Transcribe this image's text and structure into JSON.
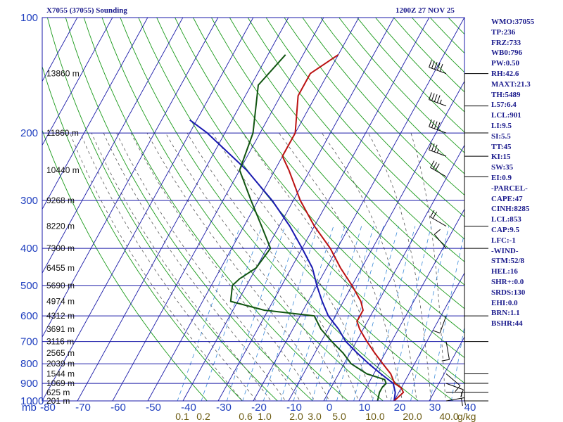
{
  "header": {
    "title": "X7055 (37055) Sounding",
    "datetime": "1200Z 27 NOV 25"
  },
  "indices": [
    "WMO:37055",
    "TP:236",
    "FRZ:733",
    "WB0:796",
    "PW:0.50",
    "RH:42.6",
    "MAXT:21.3",
    "TH:5489",
    "L57:6.4",
    "LCL:901",
    "LI:9.5",
    "SI:5.5",
    "TT:45",
    "KI:15",
    "SW:35",
    "EI:0.9",
    "-PARCEL-",
    "CAPE:47",
    "CINH:8285",
    "LCL:853",
    "CAP:9.5",
    "LFC:-1",
    "-WIND-",
    "STM:52/8",
    "HEL:16",
    "SHR+:0.0",
    "SRDS:130",
    "EHI:0.0",
    "BRN:1.1",
    "BSHR:44"
  ],
  "colors": {
    "isobar": "#1a1aa8",
    "isotherm": "#1a1aa8",
    "dry_adiabat": "#1a9a1a",
    "moist_adiabat": "#555555",
    "mixing_ratio": "#3a8ad8",
    "temperature": "#bb1111",
    "dewpoint": "#115511",
    "parcel": "#1a1ab0",
    "wind_barb": "#000000"
  },
  "chart_data": {
    "type": "skew-t",
    "pressure_unit": "mb",
    "pressure_levels": [
      100,
      200,
      300,
      400,
      500,
      600,
      700,
      800,
      900,
      1000
    ],
    "temperature_ticks": [
      -80,
      -70,
      -60,
      -50,
      -40,
      -30,
      -20,
      -10,
      0,
      10,
      20,
      30,
      40
    ],
    "mixing_ratio_labels": [
      "0.1",
      "0.2",
      "0.6",
      "1.0",
      "2.0",
      "3.0",
      "5.0",
      "10.0",
      "20.0",
      "40.0"
    ],
    "mixing_ratio_unit": "g/kg",
    "heights": [
      {
        "p": 140,
        "label": "13860 m"
      },
      {
        "p": 200,
        "label": "11860 m"
      },
      {
        "p": 250,
        "label": "10440 m"
      },
      {
        "p": 300,
        "label": "9268 m"
      },
      {
        "p": 350,
        "label": "8220 m"
      },
      {
        "p": 400,
        "label": "7300 m"
      },
      {
        "p": 450,
        "label": "6455 m"
      },
      {
        "p": 500,
        "label": "5690 m"
      },
      {
        "p": 550,
        "label": "4974 m"
      },
      {
        "p": 600,
        "label": "4312 m"
      },
      {
        "p": 650,
        "label": "3691 m"
      },
      {
        "p": 700,
        "label": "3116 m"
      },
      {
        "p": 750,
        "label": "2565 m"
      },
      {
        "p": 800,
        "label": "2039 m"
      },
      {
        "p": 850,
        "label": "1544 m"
      },
      {
        "p": 900,
        "label": "1069 m"
      },
      {
        "p": 950,
        "label": "625 m"
      },
      {
        "p": 1000,
        "label": "201 m"
      }
    ],
    "temperature_profile": [
      {
        "p": 1000,
        "t": 20.0
      },
      {
        "p": 950,
        "t": 21.3
      },
      {
        "p": 925,
        "t": 20.0
      },
      {
        "p": 900,
        "t": 17.4
      },
      {
        "p": 850,
        "t": 14.8
      },
      {
        "p": 800,
        "t": 11.0
      },
      {
        "p": 750,
        "t": 7.0
      },
      {
        "p": 700,
        "t": 3.0
      },
      {
        "p": 650,
        "t": -1.0
      },
      {
        "p": 620,
        "t": -3.0
      },
      {
        "p": 600,
        "t": -3.0
      },
      {
        "p": 580,
        "t": -3.0
      },
      {
        "p": 550,
        "t": -5.0
      },
      {
        "p": 500,
        "t": -10.0
      },
      {
        "p": 450,
        "t": -16.0
      },
      {
        "p": 400,
        "t": -22.0
      },
      {
        "p": 350,
        "t": -30.0
      },
      {
        "p": 300,
        "t": -38.0
      },
      {
        "p": 250,
        "t": -46.0
      },
      {
        "p": 230,
        "t": -50.0
      },
      {
        "p": 200,
        "t": -50.0
      },
      {
        "p": 160,
        "t": -55.0
      },
      {
        "p": 140,
        "t": -55.0
      },
      {
        "p": 125,
        "t": -50.0
      }
    ],
    "dewpoint_profile": [
      {
        "p": 1000,
        "td": 15.3
      },
      {
        "p": 950,
        "td": 14.5
      },
      {
        "p": 920,
        "td": 14.5
      },
      {
        "p": 900,
        "td": 15.0
      },
      {
        "p": 880,
        "td": 14.0
      },
      {
        "p": 850,
        "td": 8.0
      },
      {
        "p": 800,
        "td": 2.0
      },
      {
        "p": 750,
        "td": -2.0
      },
      {
        "p": 700,
        "td": -7.0
      },
      {
        "p": 650,
        "td": -12.0
      },
      {
        "p": 600,
        "td": -16.0
      },
      {
        "p": 580,
        "td": -31.0
      },
      {
        "p": 550,
        "td": -42.0
      },
      {
        "p": 500,
        "td": -44.0
      },
      {
        "p": 480,
        "td": -43.0
      },
      {
        "p": 450,
        "td": -40.0
      },
      {
        "p": 400,
        "td": -39.0
      },
      {
        "p": 350,
        "td": -45.0
      },
      {
        "p": 300,
        "td": -52.0
      },
      {
        "p": 250,
        "td": -60.0
      },
      {
        "p": 200,
        "td": -62.0
      },
      {
        "p": 150,
        "td": -68.0
      },
      {
        "p": 125,
        "td": -65.0
      }
    ],
    "parcel_profile": [
      {
        "p": 1000,
        "t": 20.0
      },
      {
        "p": 950,
        "t": 19.0
      },
      {
        "p": 900,
        "t": 17.0
      },
      {
        "p": 850,
        "t": 12.0
      },
      {
        "p": 800,
        "t": 7.0
      },
      {
        "p": 750,
        "t": 2.0
      },
      {
        "p": 700,
        "t": -3.0
      },
      {
        "p": 650,
        "t": -7.0
      },
      {
        "p": 600,
        "t": -12.0
      },
      {
        "p": 550,
        "t": -16.0
      },
      {
        "p": 500,
        "t": -20.0
      },
      {
        "p": 450,
        "t": -24.0
      },
      {
        "p": 400,
        "t": -30.0
      },
      {
        "p": 350,
        "t": -37.0
      },
      {
        "p": 300,
        "t": -46.0
      },
      {
        "p": 250,
        "t": -58.0
      },
      {
        "p": 200,
        "t": -75.0
      },
      {
        "p": 185,
        "t": -82.0
      }
    ],
    "wind_barbs": [
      {
        "p": 140,
        "dir": 290,
        "speed": 50
      },
      {
        "p": 170,
        "dir": 290,
        "speed": 45
      },
      {
        "p": 200,
        "dir": 290,
        "speed": 40
      },
      {
        "p": 230,
        "dir": 290,
        "speed": 35
      },
      {
        "p": 260,
        "dir": 300,
        "speed": 30
      },
      {
        "p": 350,
        "dir": 300,
        "speed": 20
      },
      {
        "p": 400,
        "dir": 320,
        "speed": 10
      },
      {
        "p": 600,
        "dir": 200,
        "speed": 10
      },
      {
        "p": 700,
        "dir": 170,
        "speed": 10
      },
      {
        "p": 850,
        "dir": 130,
        "speed": 10
      },
      {
        "p": 900,
        "dir": 110,
        "speed": 10
      },
      {
        "p": 950,
        "dir": 90,
        "speed": 15
      },
      {
        "p": 1000,
        "dir": 80,
        "speed": 20
      }
    ]
  }
}
